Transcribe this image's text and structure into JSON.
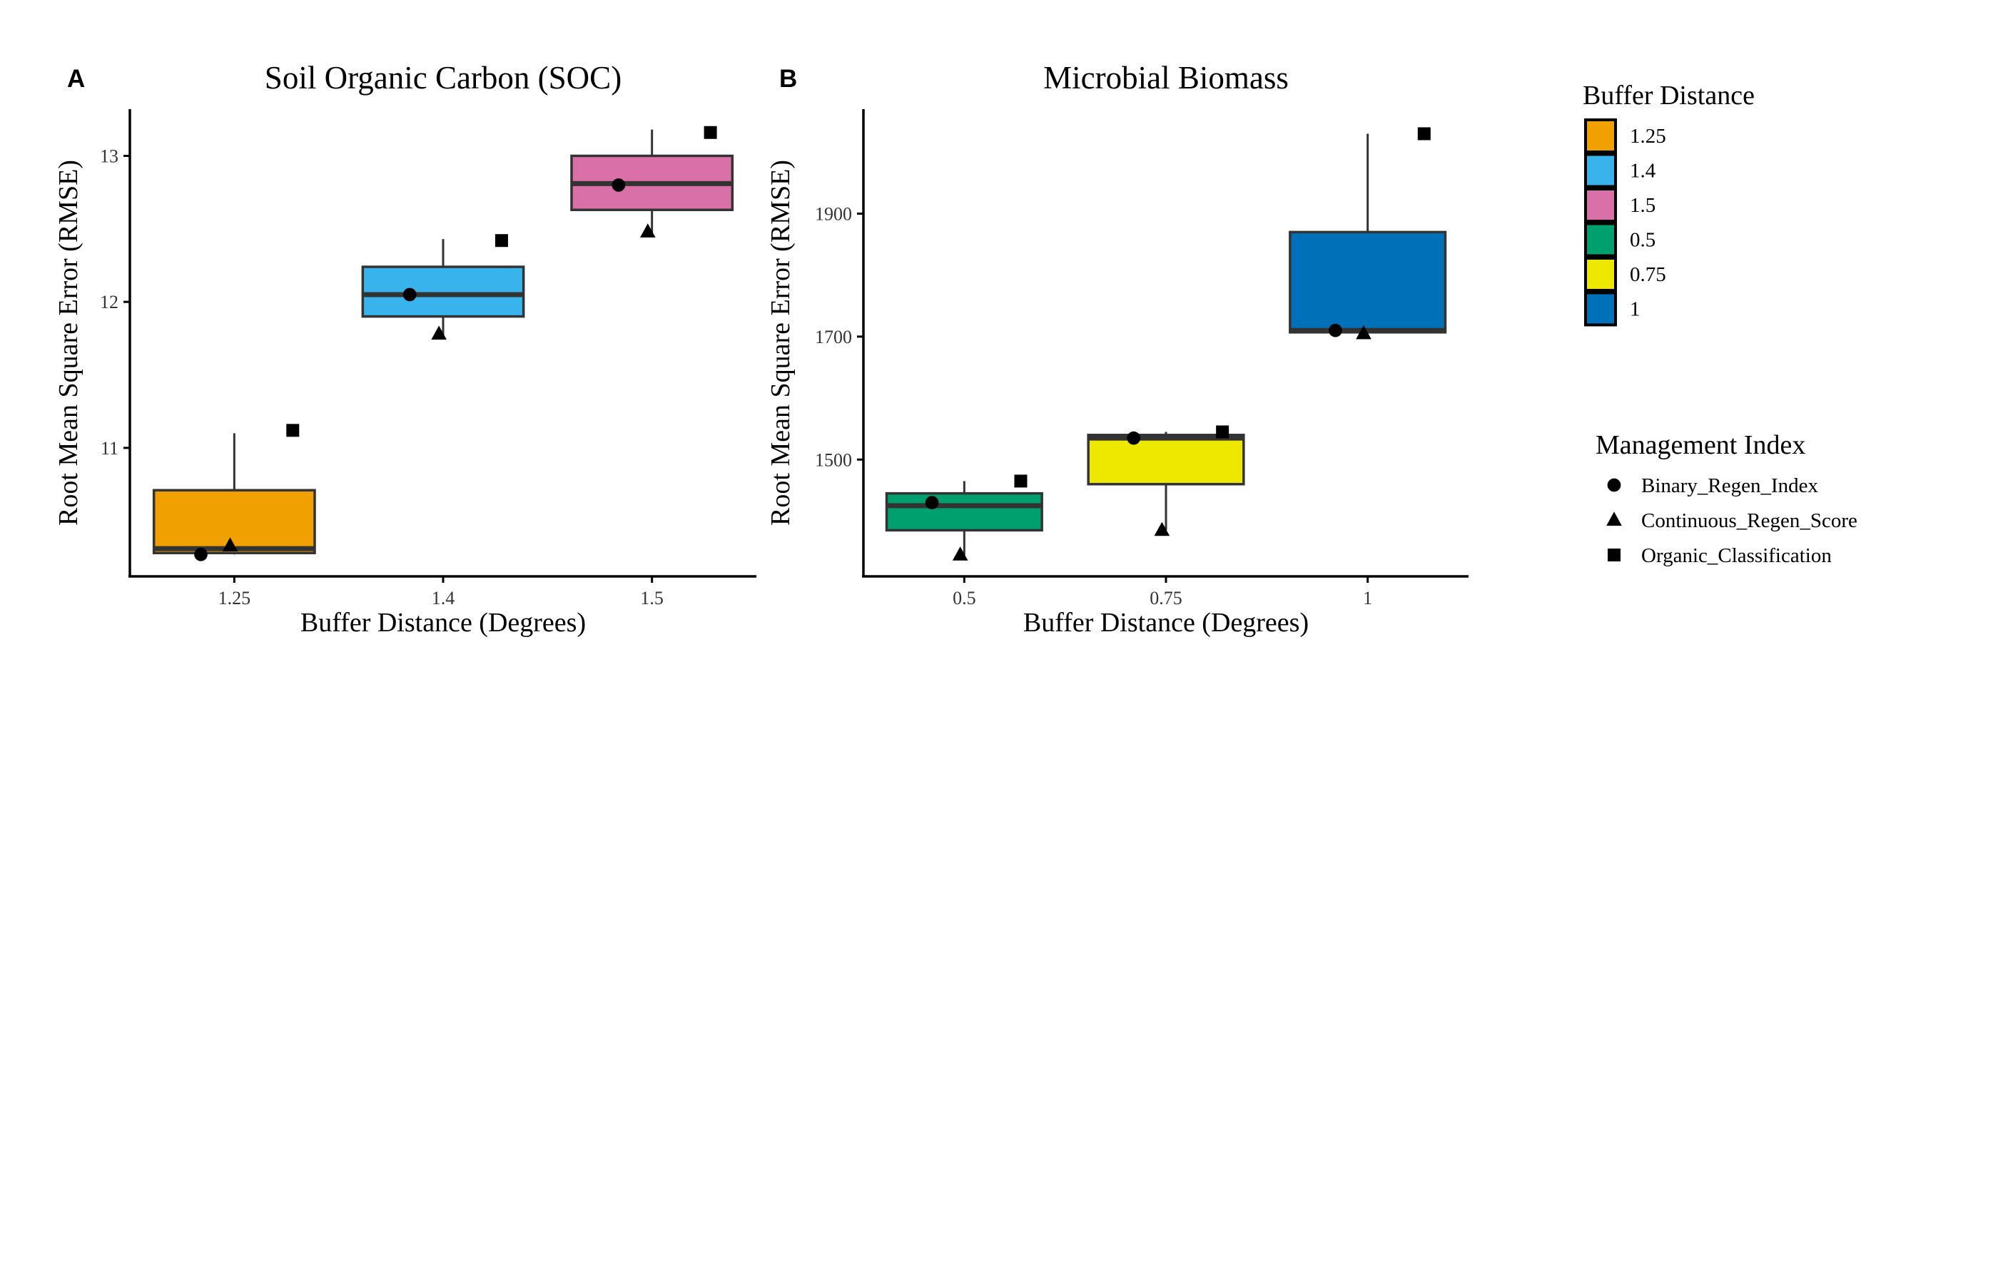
{
  "chart_data": [
    {
      "type": "box",
      "panel_label": "A",
      "title": "Soil Organic Carbon (SOC)",
      "xlabel": "Buffer Distance (Degrees)",
      "ylabel": "Root Mean Square Error (RMSE)",
      "ylim": [
        10.12,
        13.32
      ],
      "yticks": [
        11,
        12,
        13
      ],
      "grid": false,
      "categories": [
        "1.25",
        "1.4",
        "1.5"
      ],
      "boxes": [
        {
          "category": "1.25",
          "min": 10.27,
          "q1": 10.28,
          "median": 10.31,
          "q3": 10.71,
          "max": 11.1,
          "fill": "#F0A000"
        },
        {
          "category": "1.4",
          "min": 11.75,
          "q1": 11.9,
          "median": 12.05,
          "q3": 12.24,
          "max": 12.43,
          "fill": "#38B3EB"
        },
        {
          "category": "1.5",
          "min": 12.47,
          "q1": 12.63,
          "median": 12.81,
          "q3": 13.0,
          "max": 13.18,
          "fill": "#D970A8"
        }
      ],
      "points": [
        {
          "category": "1.25",
          "index": "Binary_Regen_Index",
          "value": 10.27
        },
        {
          "category": "1.25",
          "index": "Continuous_Regen_Score",
          "value": 10.33
        },
        {
          "category": "1.25",
          "index": "Organic_Classification",
          "value": 11.12
        },
        {
          "category": "1.4",
          "index": "Binary_Regen_Index",
          "value": 12.05
        },
        {
          "category": "1.4",
          "index": "Continuous_Regen_Score",
          "value": 11.78
        },
        {
          "category": "1.4",
          "index": "Organic_Classification",
          "value": 12.42
        },
        {
          "category": "1.5",
          "index": "Binary_Regen_Index",
          "value": 12.8
        },
        {
          "category": "1.5",
          "index": "Continuous_Regen_Score",
          "value": 12.48
        },
        {
          "category": "1.5",
          "index": "Organic_Classification",
          "value": 13.16
        }
      ]
    },
    {
      "type": "box",
      "panel_label": "B",
      "title": "Microbial Biomass",
      "xlabel": "Buffer Distance (Degrees)",
      "ylabel": "Root Mean Square Error (RMSE)",
      "ylim": [
        1310,
        2070
      ],
      "yticks": [
        1500,
        1700,
        1900
      ],
      "grid": false,
      "categories": [
        "0.5",
        "0.75",
        "1"
      ],
      "boxes": [
        {
          "category": "0.5",
          "min": 1345,
          "q1": 1385,
          "median": 1425,
          "q3": 1445,
          "max": 1465,
          "fill": "#00A06E"
        },
        {
          "category": "0.75",
          "min": 1385,
          "q1": 1460,
          "median": 1535,
          "q3": 1540,
          "max": 1545,
          "fill": "#EEE800"
        },
        {
          "category": "1",
          "min": 1705,
          "q1": 1707,
          "median": 1710,
          "q3": 1870,
          "max": 2030,
          "fill": "#0070B8"
        }
      ],
      "points": [
        {
          "category": "0.5",
          "index": "Binary_Regen_Index",
          "value": 1430
        },
        {
          "category": "0.5",
          "index": "Continuous_Regen_Score",
          "value": 1345
        },
        {
          "category": "0.5",
          "index": "Organic_Classification",
          "value": 1465
        },
        {
          "category": "0.75",
          "index": "Binary_Regen_Index",
          "value": 1535
        },
        {
          "category": "0.75",
          "index": "Continuous_Regen_Score",
          "value": 1385
        },
        {
          "category": "0.75",
          "index": "Organic_Classification",
          "value": 1545
        },
        {
          "category": "1",
          "index": "Binary_Regen_Index",
          "value": 1710
        },
        {
          "category": "1",
          "index": "Continuous_Regen_Score",
          "value": 1705
        },
        {
          "category": "1",
          "index": "Organic_Classification",
          "value": 2030
        }
      ]
    }
  ],
  "legend": {
    "placement": "right",
    "fill": {
      "title": "Buffer Distance",
      "items": [
        {
          "label": "1.25",
          "color": "#F0A000"
        },
        {
          "label": "1.4",
          "color": "#38B3EB"
        },
        {
          "label": "1.5",
          "color": "#D970A8"
        },
        {
          "label": "0.5",
          "color": "#00A06E"
        },
        {
          "label": "0.75",
          "color": "#EEE800"
        },
        {
          "label": "1",
          "color": "#0070B8"
        }
      ]
    },
    "shape": {
      "title": "Management Index",
      "items": [
        {
          "label": "Binary_Regen_Index",
          "shape": "circle"
        },
        {
          "label": "Continuous_Regen_Score",
          "shape": "triangle"
        },
        {
          "label": "Organic_Classification",
          "shape": "square"
        }
      ]
    }
  }
}
